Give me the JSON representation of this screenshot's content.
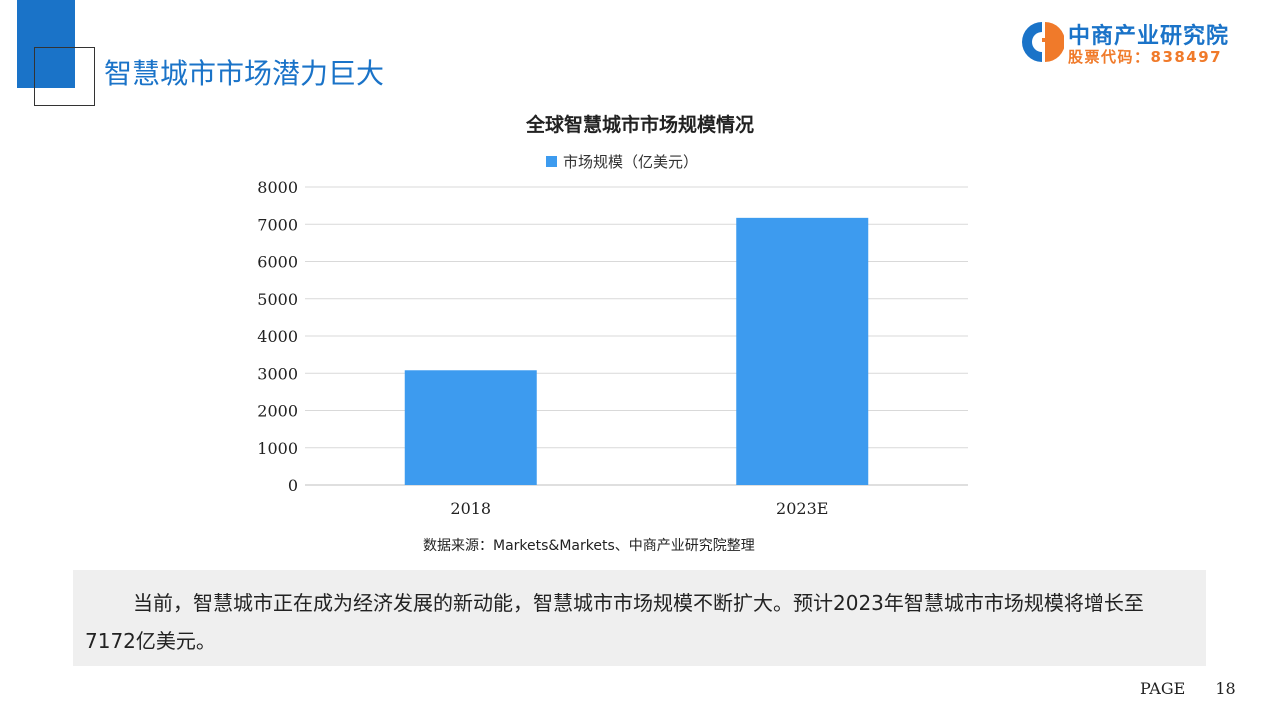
{
  "header": {
    "title": "智慧城市市场潜力巨大"
  },
  "logo": {
    "name": "中商产业研究院",
    "stock_code": "股票代码：838497",
    "colors": {
      "blue": "#1a73c8",
      "orange": "#f07a2a"
    }
  },
  "chart_data": {
    "type": "bar",
    "title": "全球智慧城市市场规模情况",
    "categories": [
      "2018",
      "2023E"
    ],
    "series": [
      {
        "name": "市场规模（亿美元）",
        "values": [
          3080,
          7172
        ],
        "color": "#3d9bef"
      }
    ],
    "yticks": [
      "0",
      "1000",
      "2000",
      "3000",
      "4000",
      "5000",
      "6000",
      "7000",
      "8000"
    ],
    "ylim": [
      0,
      8000
    ],
    "grid": true,
    "legend": "top"
  },
  "source": "数据来源：Markets&Markets、中商产业研究院整理",
  "description": "当前，智慧城市正在成为经济发展的新动能，智慧城市市场规模不断扩大。预计2023年智慧城市市场规模将增长至7172亿美元。",
  "footer": {
    "page_label": "PAGE",
    "page_number": "18"
  }
}
